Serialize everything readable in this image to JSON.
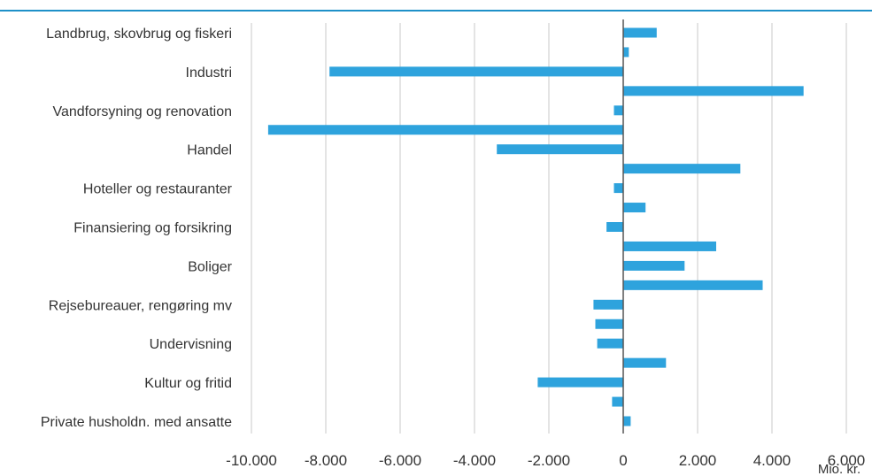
{
  "colors": {
    "bar": "#2EA3DD",
    "grid": "#C8C8C8",
    "zero_axis": "#555555",
    "top_rule": "#1E90C8",
    "text": "#333333"
  },
  "chart_data": {
    "type": "bar",
    "orientation": "horizontal",
    "title": "",
    "xlabel": "Mio. kr.",
    "ylabel": "",
    "xlim": [
      -10000,
      6000
    ],
    "x_ticks": [
      -10000,
      -8000,
      -6000,
      -4000,
      -2000,
      0,
      2000,
      4000,
      6000
    ],
    "x_tick_labels": [
      "-10.000",
      "-8.000",
      "-6.000",
      "-4.000",
      "-2.000",
      "0",
      "2.000",
      "4.000",
      "6.000"
    ],
    "grid": true,
    "legend": "none",
    "labels_every": 2,
    "category_labels": [
      "Landbrug, skovbrug og fiskeri",
      "Industri",
      "Vandforsyning og renovation",
      "Handel",
      "Hoteller og restauranter",
      "Finansiering og forsikring",
      "Boliger",
      "Rejsebureauer, rengøring mv",
      "Undervisning",
      "Kultur og fritid",
      "Private husholdn. med ansatte"
    ],
    "values": [
      900,
      150,
      -7900,
      4850,
      -250,
      -9550,
      -3400,
      3150,
      -250,
      600,
      -450,
      2500,
      1650,
      3750,
      -800,
      -750,
      -700,
      1150,
      -2300,
      -300,
      200
    ]
  }
}
